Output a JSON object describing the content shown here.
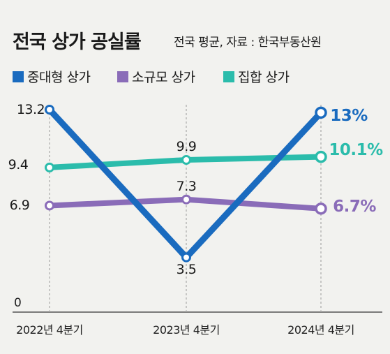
{
  "header": {
    "title": "전국 상가 공실률",
    "subtitle": "전국 평균, 자료 : 한국부동산원"
  },
  "colors": {
    "mid_size": "#1a6bbf",
    "small": "#8a6cb8",
    "collective": "#2bbcab",
    "grid": "#9a9a9a",
    "axis": "#333333"
  },
  "chart_data": {
    "type": "line",
    "title": "전국 상가 공실률",
    "subtitle": "전국 평균, 자료 : 한국부동산원",
    "categories": [
      "2022년 4분기",
      "2023년 4분기",
      "2024년 4분기"
    ],
    "ylim": [
      0,
      13.2
    ],
    "y_zero_label": "0",
    "grid": "vertical dashed lines at each category",
    "legend": "top-left",
    "series": [
      {
        "name": "중대형 상가",
        "color": "#1a6bbf",
        "values": [
          13.2,
          3.5,
          13
        ],
        "labels": [
          "13.2",
          "3.5",
          "13%"
        ]
      },
      {
        "name": "소규모 상가",
        "color": "#8a6cb8",
        "values": [
          6.9,
          7.3,
          6.7
        ],
        "labels": [
          "6.9",
          "7.3",
          "6.7%"
        ]
      },
      {
        "name": "집합 상가",
        "color": "#2bbcab",
        "values": [
          9.4,
          9.9,
          10.1
        ],
        "labels": [
          "9.4",
          "9.9",
          "10.1%"
        ]
      }
    ]
  }
}
